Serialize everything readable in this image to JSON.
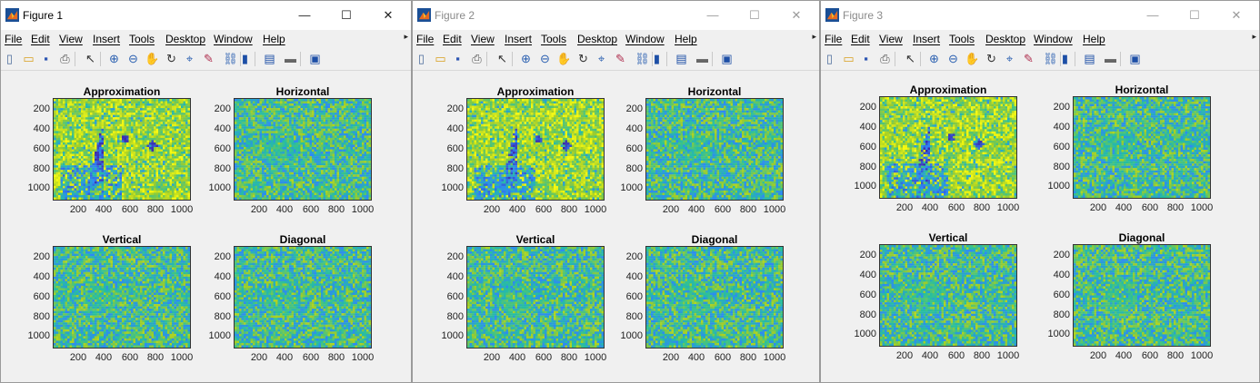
{
  "windows": [
    {
      "title": "Figure 1",
      "active": true,
      "menus": [
        "File",
        "Edit",
        "View",
        "Insert",
        "Tools",
        "Desktop",
        "Window",
        "Help"
      ],
      "axes": [
        {
          "title": "Approximation",
          "kind": "approx"
        },
        {
          "title": "Horizontal",
          "kind": "detail"
        },
        {
          "title": "Vertical",
          "kind": "detail"
        },
        {
          "title": "Diagonal",
          "kind": "detail"
        }
      ]
    },
    {
      "title": "Figure 2",
      "active": false,
      "menus": [
        "File",
        "Edit",
        "View",
        "Insert",
        "Tools",
        "Desktop",
        "Window",
        "Help"
      ],
      "axes": [
        {
          "title": "Approximation",
          "kind": "approx"
        },
        {
          "title": "Horizontal",
          "kind": "detail"
        },
        {
          "title": "Vertical",
          "kind": "detail"
        },
        {
          "title": "Diagonal",
          "kind": "detail"
        }
      ]
    },
    {
      "title": "Figure 3",
      "active": false,
      "menus": [
        "File",
        "Edit",
        "View",
        "Insert",
        "Tools",
        "Desktop",
        "Window",
        "Help"
      ],
      "axes": [
        {
          "title": "Approximation",
          "kind": "approx"
        },
        {
          "title": "Horizontal",
          "kind": "detail"
        },
        {
          "title": "Vertical",
          "kind": "detail"
        },
        {
          "title": "Diagonal",
          "kind": "detail"
        }
      ]
    }
  ],
  "window_controls": {
    "minimize": "—",
    "maximize": "☐",
    "close": "✕"
  },
  "toolbar_icons": [
    "new-file-icon",
    "open-folder-icon",
    "save-icon",
    "print-icon",
    "pointer-icon",
    "zoom-in-icon",
    "zoom-out-icon",
    "pan-icon",
    "rotate-3d-icon",
    "data-cursor-icon",
    "brush-icon",
    "link-plot-icon",
    "colorbar-icon",
    "legend-icon",
    "hide-plot-tools-icon",
    "show-plot-tools-icon"
  ],
  "axis_ticks": {
    "y": [
      "200",
      "400",
      "600",
      "800",
      "1000"
    ],
    "x": [
      "200",
      "400",
      "600",
      "800",
      "1000"
    ]
  },
  "colormap": {
    "low": "#3e26a8",
    "mid": "#26bfa0",
    "high": "#f9fb0e"
  }
}
